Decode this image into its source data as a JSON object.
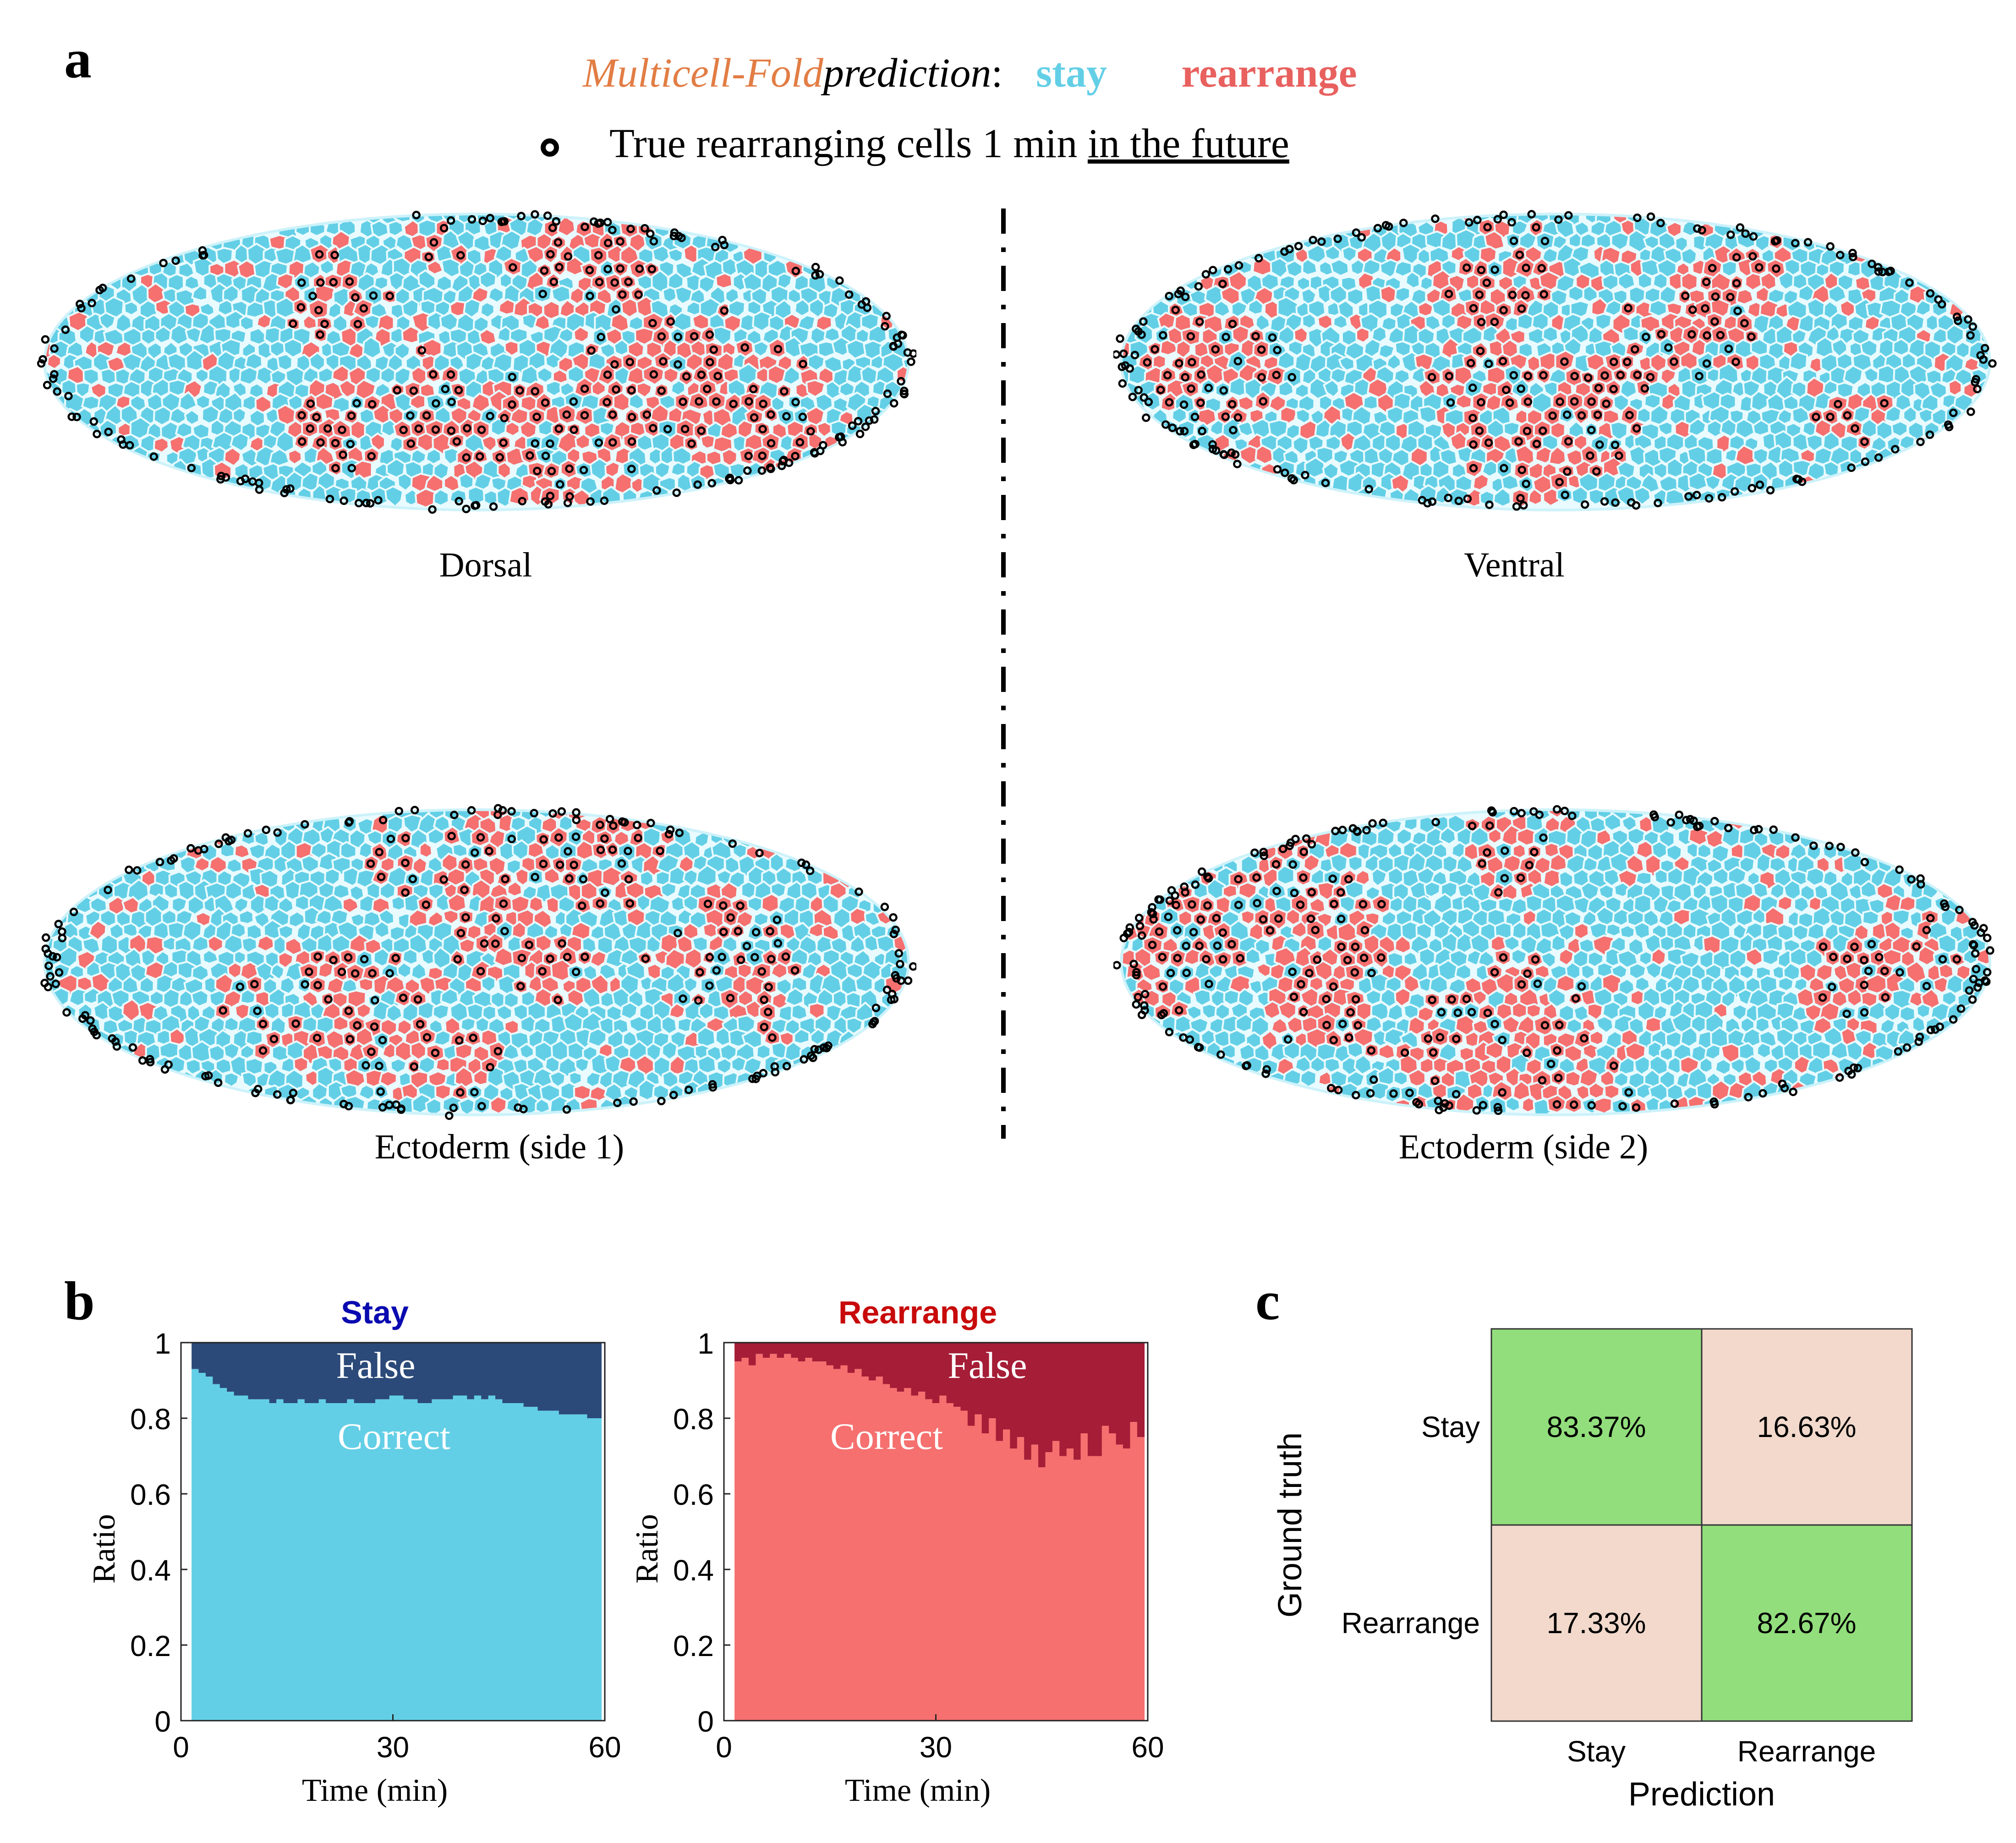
{
  "panel_a": {
    "letter": "a",
    "legend": {
      "model_name": "Multicell-Fold",
      "prediction_word": "prediction",
      "colon": ":",
      "stay_label": "stay",
      "rearrange_label": "rearrange",
      "marker_text_prefix": "True rearranging cells 1 min",
      "marker_text_underlined": "in the future"
    },
    "views": [
      "Dorsal",
      "Ventral",
      "Ectoderm (side 1)",
      "Ectoderm (side 2)"
    ],
    "colors": {
      "stay": "#63cfe6",
      "rearrange": "#f5706f",
      "membrane": "#e9fbff",
      "marker": "#000000"
    }
  },
  "panel_b": {
    "letter": "b"
  },
  "panel_c": {
    "letter": "c"
  },
  "chart_data": [
    {
      "type": "area",
      "title": "Stay",
      "title_color": "#0a0ab0",
      "xlabel": "Time (min)",
      "ylabel": "Ratio",
      "xlim": [
        0,
        60
      ],
      "ylim": [
        0,
        1
      ],
      "xticks": [
        "0",
        "30",
        "60"
      ],
      "yticks": [
        "0",
        "0.2",
        "0.4",
        "0.6",
        "0.8",
        "1"
      ],
      "x": [
        2,
        3,
        4,
        5,
        6,
        7,
        8,
        9,
        10,
        11,
        12,
        13,
        14,
        15,
        16,
        17,
        18,
        19,
        20,
        21,
        22,
        23,
        24,
        25,
        26,
        27,
        28,
        29,
        30,
        31,
        32,
        33,
        34,
        35,
        36,
        37,
        38,
        39,
        40,
        41,
        42,
        43,
        44,
        45,
        46,
        47,
        48,
        49,
        50,
        51,
        52,
        53,
        54,
        55,
        56,
        57,
        58,
        59
      ],
      "series": [
        {
          "name": "Correct",
          "color": "#63cfe6",
          "values": [
            0.93,
            0.92,
            0.91,
            0.89,
            0.88,
            0.87,
            0.86,
            0.86,
            0.85,
            0.85,
            0.85,
            0.84,
            0.85,
            0.84,
            0.84,
            0.85,
            0.84,
            0.84,
            0.85,
            0.84,
            0.84,
            0.84,
            0.85,
            0.84,
            0.84,
            0.84,
            0.85,
            0.85,
            0.86,
            0.86,
            0.85,
            0.85,
            0.84,
            0.84,
            0.85,
            0.85,
            0.85,
            0.86,
            0.86,
            0.85,
            0.86,
            0.85,
            0.86,
            0.85,
            0.84,
            0.84,
            0.84,
            0.83,
            0.83,
            0.82,
            0.82,
            0.82,
            0.81,
            0.81,
            0.81,
            0.81,
            0.8,
            0.8
          ]
        },
        {
          "name": "False",
          "color": "#2b4a7a"
        }
      ],
      "labels": {
        "false": "False",
        "correct": "Correct"
      }
    },
    {
      "type": "area",
      "title": "Rearrange",
      "title_color": "#c80a0a",
      "xlabel": "Time (min)",
      "ylabel": "Ratio",
      "xlim": [
        0,
        60
      ],
      "ylim": [
        0,
        1
      ],
      "xticks": [
        "0",
        "30",
        "60"
      ],
      "yticks": [
        "0",
        "0.2",
        "0.4",
        "0.6",
        "0.8",
        "1"
      ],
      "x": [
        2,
        3,
        4,
        5,
        6,
        7,
        8,
        9,
        10,
        11,
        12,
        13,
        14,
        15,
        16,
        17,
        18,
        19,
        20,
        21,
        22,
        23,
        24,
        25,
        26,
        27,
        28,
        29,
        30,
        31,
        32,
        33,
        34,
        35,
        36,
        37,
        38,
        39,
        40,
        41,
        42,
        43,
        44,
        45,
        46,
        47,
        48,
        49,
        50,
        51,
        52,
        53,
        54,
        55,
        56,
        57,
        58,
        59
      ],
      "series": [
        {
          "name": "Correct",
          "color": "#f5706f",
          "values": [
            0.95,
            0.96,
            0.94,
            0.97,
            0.96,
            0.97,
            0.96,
            0.97,
            0.96,
            0.95,
            0.96,
            0.95,
            0.95,
            0.94,
            0.93,
            0.94,
            0.92,
            0.93,
            0.91,
            0.9,
            0.91,
            0.89,
            0.88,
            0.87,
            0.88,
            0.86,
            0.87,
            0.85,
            0.84,
            0.86,
            0.84,
            0.83,
            0.82,
            0.78,
            0.81,
            0.76,
            0.8,
            0.74,
            0.77,
            0.72,
            0.75,
            0.69,
            0.73,
            0.67,
            0.71,
            0.74,
            0.7,
            0.72,
            0.69,
            0.76,
            0.7,
            0.7,
            0.78,
            0.76,
            0.73,
            0.72,
            0.79,
            0.75
          ]
        },
        {
          "name": "False",
          "color": "#a51d36"
        }
      ],
      "labels": {
        "false": "False",
        "correct": "Correct"
      }
    },
    {
      "type": "heatmap",
      "xlabel": "Prediction",
      "ylabel": "Ground truth",
      "x_categories": [
        "Stay",
        "Rearrange"
      ],
      "y_categories": [
        "Stay",
        "Rearrange"
      ],
      "cells": [
        [
          "83.37%",
          "16.63%"
        ],
        [
          "17.33%",
          "82.67%"
        ]
      ],
      "colors": {
        "diagonal": "#92de7c",
        "off_diagonal": "#f2d9cb"
      }
    }
  ]
}
